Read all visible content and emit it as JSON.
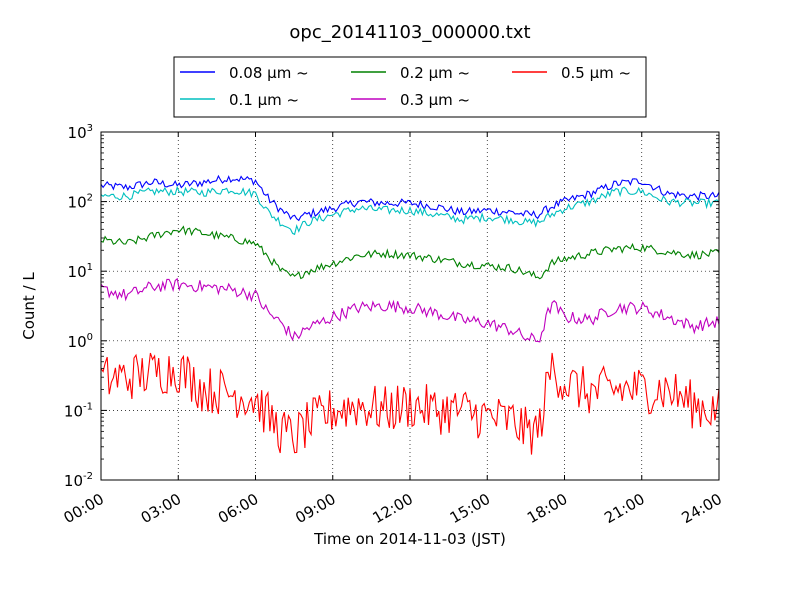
{
  "chart_data": {
    "type": "line",
    "title": "opc_20141103_000000.txt",
    "xlabel": "Time on 2014-11-03 (JST)",
    "ylabel": "Count / L",
    "yscale": "log",
    "xlim": [
      "2014-11-03 00:00",
      "2014-11-04 00:00"
    ],
    "ylim": [
      0.01,
      1000
    ],
    "x_ticks": [
      "00:00",
      "03:00",
      "06:00",
      "09:00",
      "12:00",
      "15:00",
      "18:00",
      "21:00",
      "24:00"
    ],
    "y_ticks": [
      {
        "base": "10",
        "exp": "-2"
      },
      {
        "base": "10",
        "exp": "-1"
      },
      {
        "base": "10",
        "exp": "0"
      },
      {
        "base": "10",
        "exp": "1"
      },
      {
        "base": "10",
        "exp": "2"
      },
      {
        "base": "10",
        "exp": "3"
      }
    ],
    "grid": true,
    "legend_position": "top-center",
    "x_hours": [
      0.0,
      1.0,
      2.0,
      3.0,
      4.0,
      5.0,
      6.0,
      6.5,
      7.0,
      7.5,
      8.0,
      9.0,
      10.0,
      11.0,
      12.0,
      13.0,
      14.0,
      15.0,
      16.0,
      16.5,
      17.0,
      17.5,
      18.0,
      19.0,
      20.0,
      21.0,
      22.0,
      23.0,
      24.0
    ],
    "series": [
      {
        "name": "0.08 μm ~",
        "color": "#0000ff",
        "values": [
          170,
          160,
          190,
          170,
          190,
          220,
          200,
          110,
          75,
          55,
          65,
          80,
          100,
          95,
          95,
          85,
          70,
          75,
          70,
          65,
          65,
          85,
          100,
          130,
          180,
          200,
          130,
          120,
          120
        ]
      },
      {
        "name": "0.1 μm ~",
        "color": "#00bfbf",
        "values": [
          120,
          120,
          140,
          140,
          135,
          150,
          130,
          70,
          50,
          38,
          50,
          65,
          80,
          75,
          75,
          65,
          55,
          60,
          55,
          50,
          50,
          65,
          80,
          100,
          140,
          140,
          100,
          95,
          95
        ]
      },
      {
        "name": "0.2 μm ~",
        "color": "#008000",
        "values": [
          28,
          25,
          32,
          40,
          35,
          30,
          25,
          16,
          10,
          8,
          10,
          13,
          17,
          18,
          17,
          15,
          13,
          12,
          11,
          9.5,
          8,
          13,
          15,
          18,
          21,
          22,
          19,
          17,
          18
        ]
      },
      {
        "name": "0.3 μm ~",
        "color": "#bf00bf",
        "values": [
          5.5,
          4.5,
          6,
          6.5,
          6,
          5.5,
          4.5,
          2.5,
          1.8,
          1.1,
          1.5,
          2.2,
          3,
          3.2,
          3,
          2.5,
          2,
          1.8,
          1.4,
          1.1,
          1.0,
          3.5,
          2.2,
          2,
          3,
          3,
          2.2,
          1.6,
          1.9
        ]
      },
      {
        "name": "0.5 μm ~",
        "color": "#ff0000",
        "values": [
          0.28,
          0.3,
          0.35,
          0.4,
          0.2,
          0.18,
          0.15,
          0.08,
          0.05,
          0.04,
          0.06,
          0.1,
          0.12,
          0.1,
          0.12,
          0.1,
          0.1,
          0.08,
          0.07,
          0.05,
          0.05,
          0.45,
          0.25,
          0.18,
          0.2,
          0.2,
          0.2,
          0.12,
          0.1
        ]
      }
    ]
  }
}
